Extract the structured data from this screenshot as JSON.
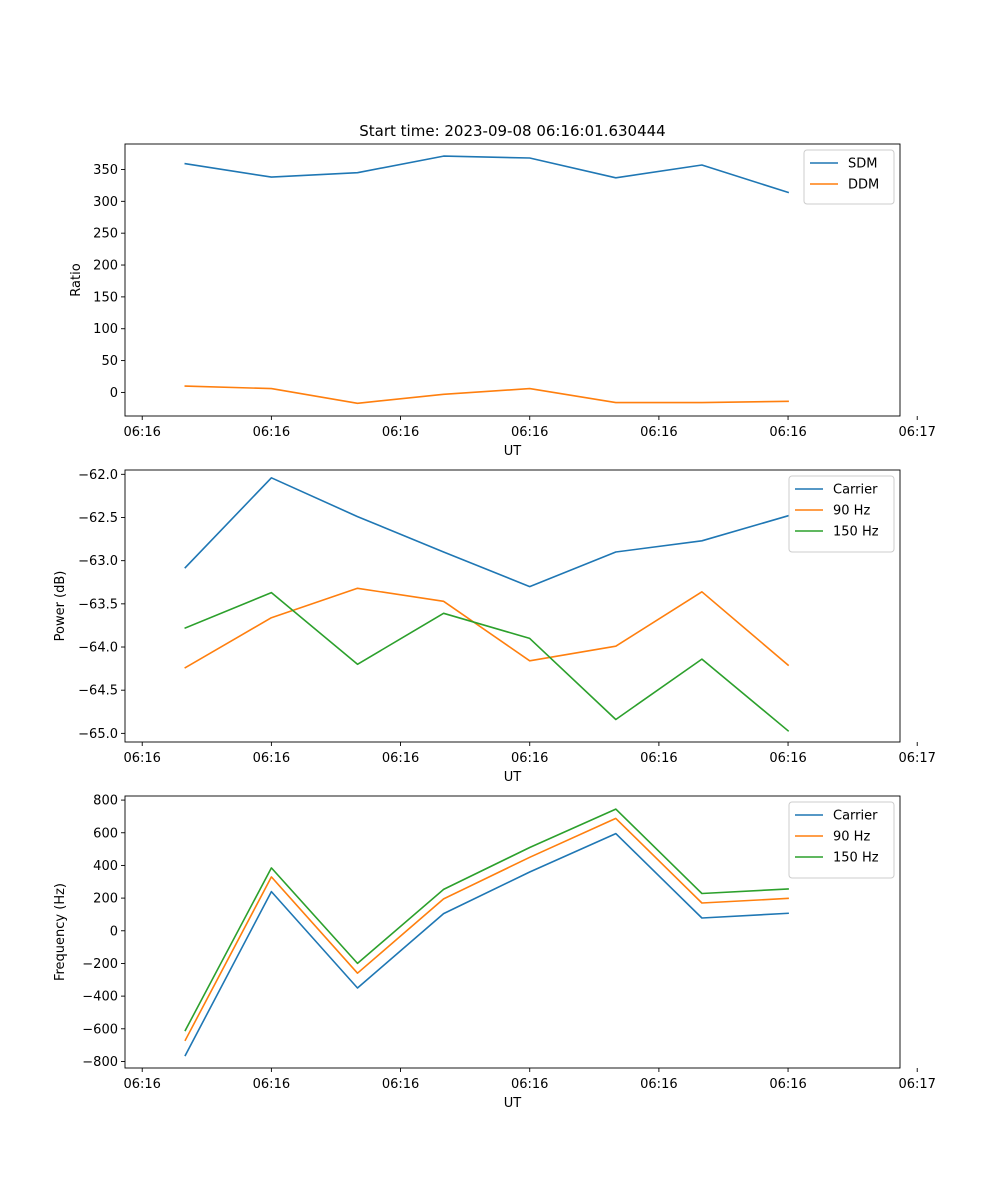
{
  "figure_title": "Start time: 2023-09-08 06:16:01.630444",
  "chart_data": [
    {
      "type": "line",
      "title": "Start time: 2023-09-08 06:16:01.630444",
      "xlabel": "UT",
      "ylabel": "Ratio",
      "x": [
        1,
        2,
        3,
        4,
        5,
        6,
        7,
        8
      ],
      "xlim": [
        0.3,
        9.3
      ],
      "xticks": [
        0.5,
        2.0,
        3.5,
        5.0,
        6.5,
        8.0,
        9.5
      ],
      "xtick_labels": [
        "06:16",
        "06:16",
        "06:16",
        "06:16",
        "06:16",
        "06:16",
        "06:17"
      ],
      "ylim": [
        -37,
        390
      ],
      "yticks": [
        0,
        50,
        100,
        150,
        200,
        250,
        300,
        350
      ],
      "ytick_labels": [
        "0",
        "50",
        "100",
        "150",
        "200",
        "250",
        "300",
        "350"
      ],
      "legend_position": "top-right",
      "series": [
        {
          "name": "SDM",
          "color": "#1f77b4",
          "values": [
            359,
            338,
            345,
            371,
            368,
            337,
            357,
            314
          ]
        },
        {
          "name": "DDM",
          "color": "#ff7f0e",
          "values": [
            10,
            6,
            -17,
            -3,
            6,
            -16,
            -16,
            -14
          ]
        }
      ]
    },
    {
      "type": "line",
      "title": "",
      "xlabel": "UT",
      "ylabel": "Power (dB)",
      "x": [
        1,
        2,
        3,
        4,
        5,
        6,
        7,
        8
      ],
      "xlim": [
        0.3,
        9.3
      ],
      "xticks": [
        0.5,
        2.0,
        3.5,
        5.0,
        6.5,
        8.0,
        9.5
      ],
      "xtick_labels": [
        "06:16",
        "06:16",
        "06:16",
        "06:16",
        "06:16",
        "06:16",
        "06:17"
      ],
      "ylim": [
        -65.1,
        -61.95
      ],
      "yticks": [
        -65.0,
        -64.5,
        -64.0,
        -63.5,
        -63.0,
        -62.5,
        -62.0
      ],
      "ytick_labels": [
        "−65.0",
        "−64.5",
        "−64.0",
        "−63.5",
        "−63.0",
        "−62.5",
        "−62.0"
      ],
      "legend_position": "top-right",
      "series": [
        {
          "name": "Carrier",
          "color": "#1f77b4",
          "values": [
            -63.08,
            -62.04,
            -62.49,
            -62.9,
            -63.3,
            -62.9,
            -62.77,
            -62.48
          ]
        },
        {
          "name": "90 Hz",
          "color": "#ff7f0e",
          "values": [
            -64.24,
            -63.66,
            -63.32,
            -63.47,
            -64.16,
            -63.99,
            -63.36,
            -64.21
          ]
        },
        {
          "name": "150 Hz",
          "color": "#2ca02c",
          "values": [
            -63.78,
            -63.37,
            -64.2,
            -63.61,
            -63.9,
            -64.84,
            -64.14,
            -64.97
          ]
        }
      ]
    },
    {
      "type": "line",
      "title": "",
      "xlabel": "UT",
      "ylabel": "Frequency (Hz)",
      "x": [
        1,
        2,
        3,
        4,
        5,
        6,
        7,
        8
      ],
      "xlim": [
        0.3,
        9.3
      ],
      "xticks": [
        0.5,
        2.0,
        3.5,
        5.0,
        6.5,
        8.0,
        9.5
      ],
      "xtick_labels": [
        "06:16",
        "06:16",
        "06:16",
        "06:16",
        "06:16",
        "06:16",
        "06:17"
      ],
      "ylim": [
        -840,
        825
      ],
      "yticks": [
        -800,
        -600,
        -400,
        -200,
        0,
        200,
        400,
        600,
        800
      ],
      "ytick_labels": [
        "−800",
        "−600",
        "−400",
        "−200",
        "0",
        "200",
        "400",
        "600",
        "800"
      ],
      "legend_position": "top-right",
      "series": [
        {
          "name": "Carrier",
          "color": "#1f77b4",
          "values": [
            -763,
            240,
            -350,
            105,
            360,
            595,
            78,
            107
          ]
        },
        {
          "name": "90 Hz",
          "color": "#ff7f0e",
          "values": [
            -670,
            330,
            -260,
            195,
            450,
            688,
            170,
            198
          ]
        },
        {
          "name": "150 Hz",
          "color": "#2ca02c",
          "values": [
            -610,
            385,
            -200,
            253,
            510,
            745,
            228,
            256
          ]
        }
      ]
    }
  ]
}
